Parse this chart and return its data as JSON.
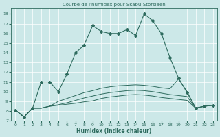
{
  "title": "Courbe de l'humidex pour Skabu-Storslaen",
  "xlabel": "Humidex (Indice chaleur)",
  "background_color": "#cce8e8",
  "line_color": "#2e6b5e",
  "xlim": [
    -0.5,
    23.5
  ],
  "ylim": [
    7,
    18.6
  ],
  "yticks": [
    7,
    8,
    9,
    10,
    11,
    12,
    13,
    14,
    15,
    16,
    17,
    18
  ],
  "xticks": [
    0,
    1,
    2,
    3,
    4,
    5,
    6,
    7,
    8,
    9,
    10,
    11,
    12,
    13,
    14,
    15,
    16,
    17,
    18,
    19,
    20,
    21,
    22,
    23
  ],
  "series1": [
    8.1,
    7.4,
    8.3,
    11.0,
    11.0,
    10.0,
    11.8,
    14.0,
    14.8,
    16.8,
    16.2,
    16.0,
    16.0,
    16.4,
    15.8,
    18.0,
    17.3,
    16.0,
    13.5,
    11.4,
    9.9,
    8.3,
    8.5,
    8.6
  ],
  "series2": [
    8.1,
    7.4,
    8.3,
    8.3,
    8.5,
    8.6,
    8.7,
    8.8,
    8.95,
    9.05,
    9.3,
    9.45,
    9.55,
    9.65,
    9.7,
    9.65,
    9.55,
    9.4,
    9.3,
    9.2,
    9.1,
    8.3,
    8.5,
    8.6
  ],
  "series3": [
    8.1,
    7.4,
    8.3,
    8.3,
    8.5,
    8.65,
    8.85,
    9.1,
    9.35,
    9.55,
    9.75,
    9.9,
    10.0,
    10.1,
    10.15,
    10.1,
    10.0,
    9.85,
    9.7,
    9.6,
    9.5,
    8.3,
    8.5,
    8.6
  ],
  "series4": [
    8.1,
    7.4,
    8.3,
    8.3,
    8.5,
    9.0,
    9.3,
    9.6,
    9.9,
    10.1,
    10.35,
    10.5,
    10.6,
    10.65,
    10.7,
    10.65,
    10.55,
    10.4,
    10.3,
    11.3,
    10.0,
    8.3,
    8.5,
    8.6
  ]
}
